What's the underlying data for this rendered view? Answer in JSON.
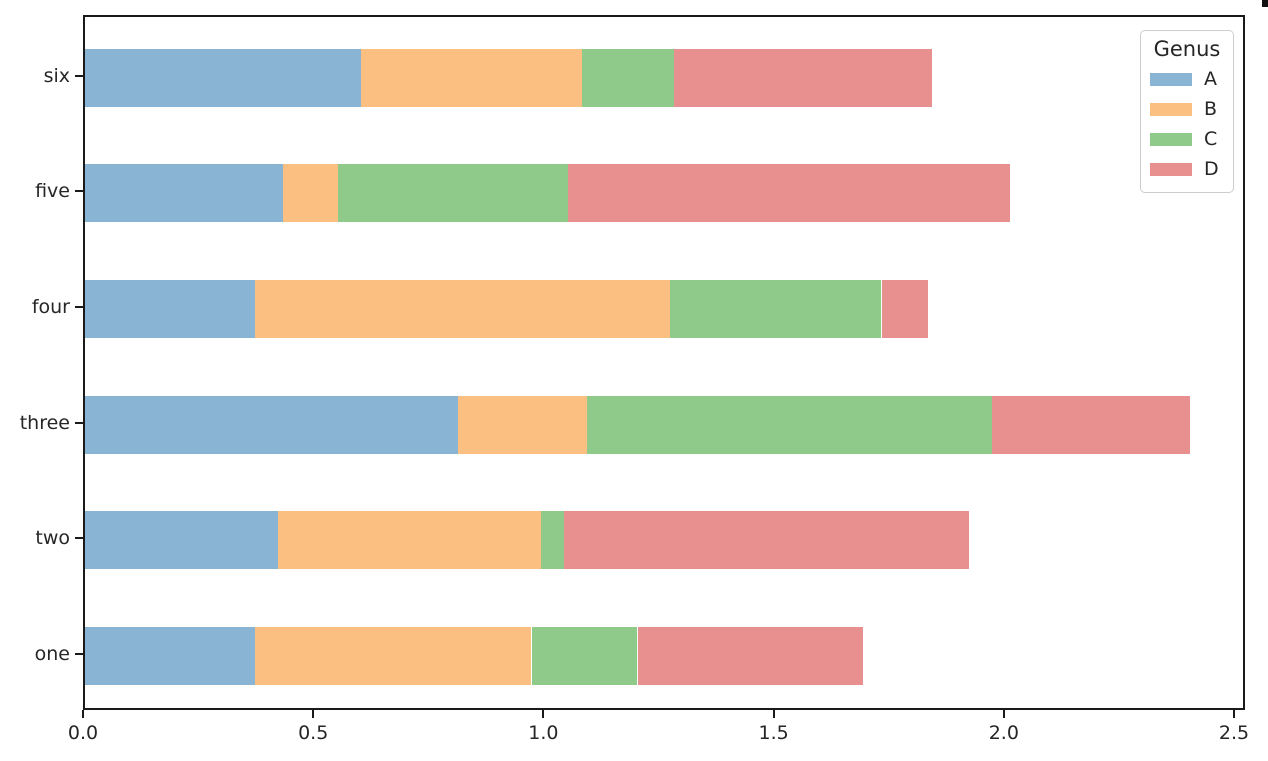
{
  "chart_data": {
    "type": "bar",
    "orientation": "horizontal",
    "stacked": true,
    "title": "",
    "xlabel": "",
    "ylabel": "",
    "grid": false,
    "xlim": [
      0,
      2.52
    ],
    "x_tick_labels": [
      "0.0",
      "0.5",
      "1.0",
      "1.5",
      "2.0",
      "2.5"
    ],
    "x_tick_values": [
      0.0,
      0.5,
      1.0,
      1.5,
      2.0,
      2.5
    ],
    "categories_top_to_bottom": [
      "six",
      "five",
      "four",
      "three",
      "two",
      "one"
    ],
    "series": [
      {
        "name": "A",
        "color": "#8ab4d4",
        "values": [
          0.6,
          0.43,
          0.37,
          0.81,
          0.42,
          0.37
        ]
      },
      {
        "name": "B",
        "color": "#fbbf81",
        "values": [
          0.48,
          0.12,
          0.9,
          0.28,
          0.57,
          0.6
        ]
      },
      {
        "name": "C",
        "color": "#8fca8b",
        "values": [
          0.2,
          0.5,
          0.46,
          0.88,
          0.05,
          0.23
        ]
      },
      {
        "name": "D",
        "color": "#e89090",
        "values": [
          0.56,
          0.96,
          0.1,
          0.43,
          0.88,
          0.49
        ]
      }
    ],
    "totals_top_to_bottom": [
      1.84,
      2.01,
      1.83,
      2.4,
      1.92,
      1.69
    ],
    "legend": {
      "title": "Genus",
      "position": "upper right",
      "entries": [
        "A",
        "B",
        "C",
        "D"
      ]
    }
  }
}
